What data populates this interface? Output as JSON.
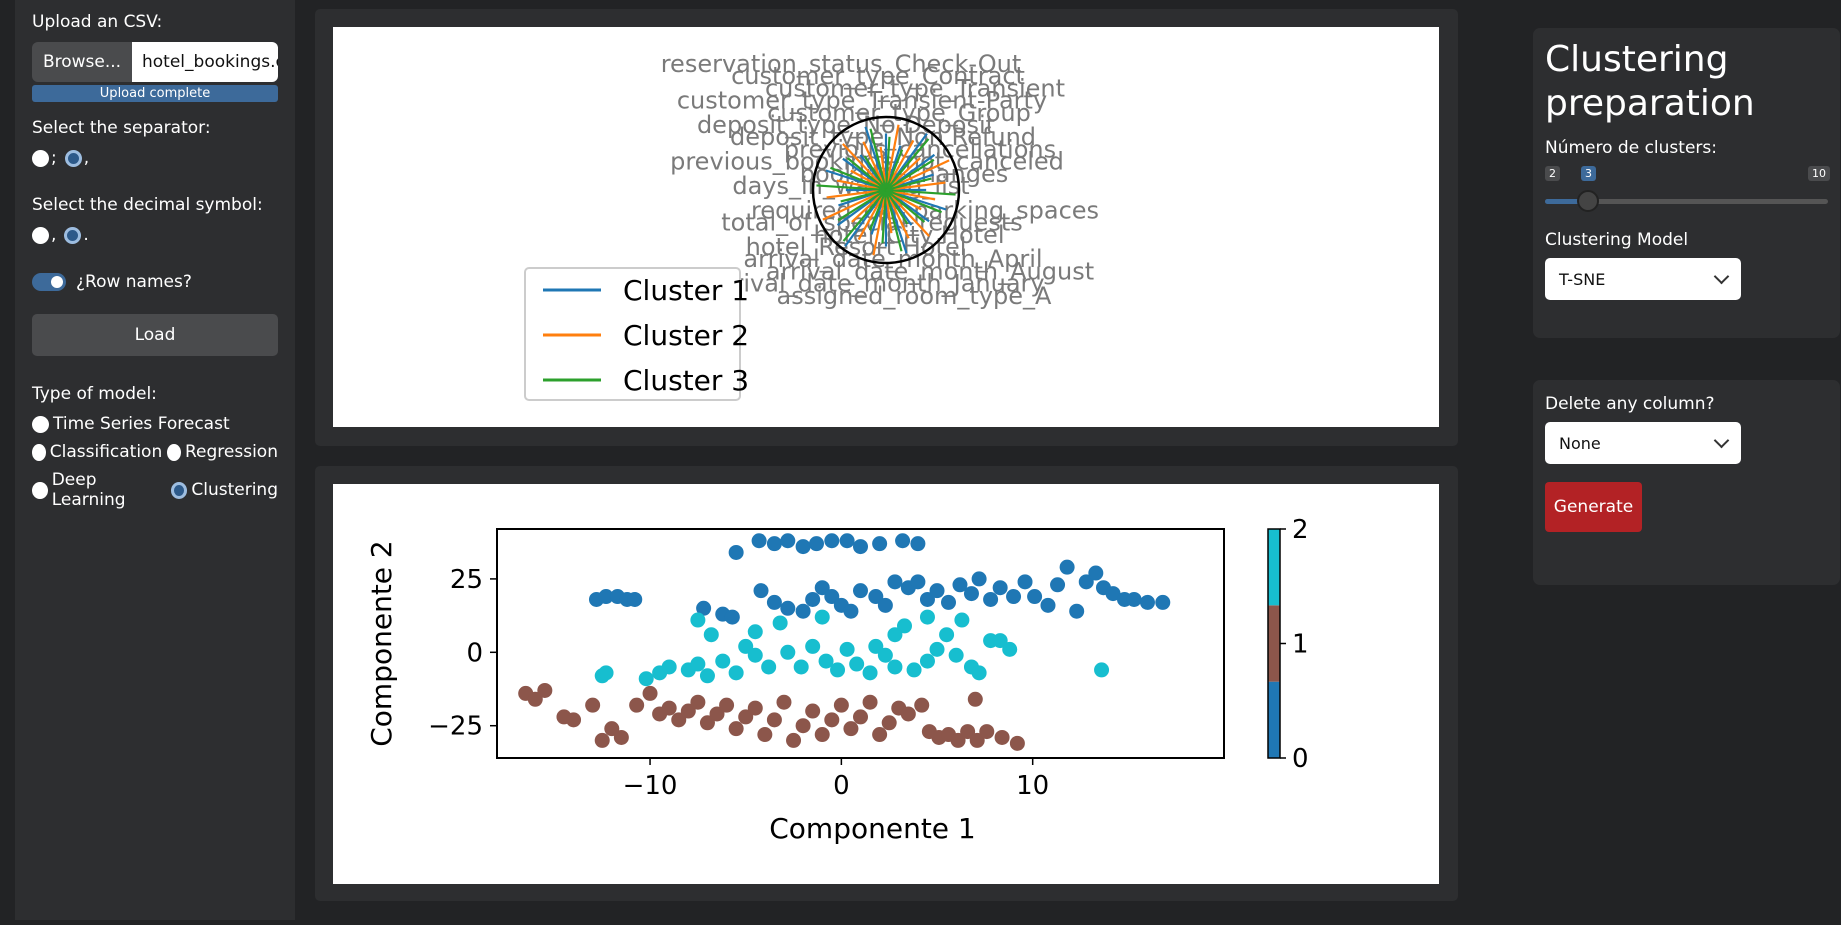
{
  "sidebar": {
    "upload_label": "Upload an CSV:",
    "browse_label": "Browse...",
    "file_name": "hotel_bookings.csv",
    "upload_status": "Upload complete",
    "separator_label": "Select the separator:",
    "separator_options": [
      ";",
      ","
    ],
    "separator_selected": ",",
    "decimal_label": "Select the decimal symbol:",
    "decimal_options": [
      ",",
      "."
    ],
    "decimal_selected": ".",
    "rownames_label": "¿Row names?",
    "rownames_on": true,
    "load_label": "Load",
    "model_type_label": "Type of model:",
    "models": [
      "Time Series Forecast",
      "Classification",
      "Regression",
      "Deep Learning",
      "Clustering"
    ],
    "model_selected": "Clustering"
  },
  "right_panel": {
    "title": "Clustering preparation",
    "clusters_label": "Número de clusters:",
    "slider_min": "2",
    "slider_value": "3",
    "slider_max": "10",
    "model_label": "Clustering Model",
    "model_value": "T-SNE",
    "delete_label": "Delete any column?",
    "delete_value": "None",
    "generate_label": "Generate"
  },
  "chart_data": [
    {
      "type": "radar",
      "legend": [
        "Cluster 1",
        "Cluster 2",
        "Cluster 3"
      ],
      "colors": [
        "#1f77b4",
        "#ff7f0e",
        "#2ca02c"
      ],
      "variables": [
        "reservation_status_Check-Out",
        "customer_type_Contract",
        "customer_type_Transient",
        "customer_type_Transient-Party",
        "customer_type_Group",
        "deposit_type_No Deposit",
        "deposit_type_Non Refund",
        "previous_cancellations",
        "previous_bookings_not_canceled",
        "booking_changes",
        "days_in_waiting_list",
        "adr",
        "required_car_parking_spaces",
        "total_of_special_requests",
        "hotel_City Hotel",
        "hotel_Resort Hotel",
        "arrival_date_month_April",
        "arrival_date_month_August",
        "arrival_date_month_January",
        "assigned_room_type_A"
      ]
    },
    {
      "type": "scatter",
      "xlabel": "Componente 1",
      "ylabel": "Componente 2",
      "xlim": [
        -18,
        20
      ],
      "ylim": [
        -36,
        42
      ],
      "xticks": [
        -10,
        0,
        10
      ],
      "yticks": [
        -25,
        0,
        25
      ],
      "colorbar_ticks": [
        0,
        1,
        2
      ],
      "colors": [
        "#1f77b4",
        "#8c564b",
        "#17becf"
      ],
      "series": [
        {
          "label": "2",
          "points": [
            [
              -5.5,
              34
            ],
            [
              -4.3,
              38
            ],
            [
              -3.5,
              37
            ],
            [
              -2.8,
              38
            ],
            [
              -2,
              36
            ],
            [
              -1.3,
              37
            ],
            [
              -0.5,
              38
            ],
            [
              0.3,
              38
            ],
            [
              1,
              36
            ],
            [
              2,
              37
            ],
            [
              3.2,
              38
            ],
            [
              4,
              37
            ],
            [
              -12.8,
              18
            ],
            [
              -12.3,
              19
            ],
            [
              -11.7,
              19
            ],
            [
              -11.2,
              18
            ],
            [
              -10.8,
              18
            ],
            [
              -7.2,
              15
            ],
            [
              -6.2,
              13
            ],
            [
              -5.7,
              12
            ],
            [
              -4.2,
              21
            ],
            [
              -3.5,
              17
            ],
            [
              -2.8,
              15
            ],
            [
              -2,
              14
            ],
            [
              -1.5,
              18
            ],
            [
              -1,
              22
            ],
            [
              -0.5,
              19
            ],
            [
              0,
              16
            ],
            [
              0.5,
              14
            ],
            [
              1,
              21
            ],
            [
              1.8,
              19
            ],
            [
              2.3,
              16
            ],
            [
              2.8,
              24
            ],
            [
              3.5,
              22
            ],
            [
              4,
              24
            ],
            [
              4.5,
              18
            ],
            [
              5,
              21
            ],
            [
              5.6,
              17
            ],
            [
              6.2,
              23
            ],
            [
              6.8,
              20
            ],
            [
              7.2,
              25
            ],
            [
              7.8,
              18
            ],
            [
              8.3,
              22
            ],
            [
              9,
              19
            ],
            [
              9.6,
              24
            ],
            [
              10.1,
              19
            ],
            [
              10.8,
              16
            ],
            [
              11.3,
              23
            ],
            [
              11.8,
              29
            ],
            [
              12.3,
              14
            ],
            [
              12.8,
              24
            ],
            [
              13.3,
              27
            ],
            [
              13.7,
              22
            ],
            [
              14.2,
              20
            ],
            [
              14.8,
              18
            ],
            [
              15.3,
              18
            ],
            [
              16,
              17
            ],
            [
              16.8,
              17
            ]
          ]
        },
        {
          "label": "0",
          "points": [
            [
              -16.5,
              -14
            ],
            [
              -16,
              -16
            ],
            [
              -15.5,
              -13
            ],
            [
              -14.5,
              -22
            ],
            [
              -14,
              -23
            ],
            [
              -13,
              -18
            ],
            [
              -12.5,
              -30
            ],
            [
              -12,
              -26
            ],
            [
              -11.5,
              -29
            ],
            [
              -10.7,
              -18
            ],
            [
              -10,
              -14
            ],
            [
              -9.5,
              -21
            ],
            [
              -9,
              -19
            ],
            [
              -8.5,
              -23
            ],
            [
              -8,
              -20
            ],
            [
              -7.5,
              -17
            ],
            [
              -7,
              -24
            ],
            [
              -6.5,
              -21
            ],
            [
              -6,
              -18
            ],
            [
              -5.5,
              -26
            ],
            [
              -5,
              -22
            ],
            [
              -4.5,
              -19
            ],
            [
              -4,
              -28
            ],
            [
              -3.5,
              -23
            ],
            [
              -3,
              -17
            ],
            [
              -2.5,
              -30
            ],
            [
              -2,
              -25
            ],
            [
              -1.5,
              -20
            ],
            [
              -1,
              -28
            ],
            [
              -0.5,
              -23
            ],
            [
              0,
              -18
            ],
            [
              0.5,
              -26
            ],
            [
              1,
              -22
            ],
            [
              1.5,
              -17
            ],
            [
              2,
              -28
            ],
            [
              2.5,
              -24
            ],
            [
              3,
              -19
            ],
            [
              3.5,
              -21
            ],
            [
              4.2,
              -18
            ],
            [
              4.6,
              -27
            ],
            [
              5.1,
              -29
            ],
            [
              5.6,
              -28
            ],
            [
              6.1,
              -30
            ],
            [
              6.6,
              -27
            ],
            [
              7.1,
              -30
            ],
            [
              7.6,
              -27
            ],
            [
              8.4,
              -29
            ],
            [
              9.2,
              -31
            ],
            [
              7,
              -16
            ]
          ]
        },
        {
          "label": "1",
          "points": [
            [
              -12.5,
              -8
            ],
            [
              -12.3,
              -7
            ],
            [
              -10.2,
              -9
            ],
            [
              -9.5,
              -7
            ],
            [
              -9,
              -5
            ],
            [
              -8,
              -6
            ],
            [
              -7.5,
              -4
            ],
            [
              -7,
              -8
            ],
            [
              -7.5,
              11
            ],
            [
              -6.8,
              6
            ],
            [
              -6.2,
              -3
            ],
            [
              -5.5,
              -7
            ],
            [
              -5,
              2
            ],
            [
              -4.5,
              -1
            ],
            [
              -3.8,
              -5
            ],
            [
              -3.2,
              10
            ],
            [
              -2.8,
              0
            ],
            [
              -2.1,
              -5
            ],
            [
              -1.5,
              2
            ],
            [
              -0.8,
              -3
            ],
            [
              -0.2,
              -6
            ],
            [
              0.3,
              1
            ],
            [
              0.8,
              -4
            ],
            [
              1.5,
              -7
            ],
            [
              1.8,
              2
            ],
            [
              2.3,
              -1
            ],
            [
              2.8,
              -5
            ],
            [
              3.3,
              9
            ],
            [
              3.8,
              -6
            ],
            [
              4.5,
              -3
            ],
            [
              5,
              1
            ],
            [
              5.5,
              6
            ],
            [
              6,
              -1
            ],
            [
              6.3,
              11
            ],
            [
              6.8,
              -5
            ],
            [
              7.2,
              -7
            ],
            [
              7.8,
              4
            ],
            [
              8.3,
              4
            ],
            [
              8.8,
              1
            ],
            [
              13.6,
              -6
            ],
            [
              2.8,
              6
            ],
            [
              -4.5,
              7
            ],
            [
              -1,
              12
            ],
            [
              4.5,
              12
            ]
          ]
        }
      ]
    }
  ]
}
